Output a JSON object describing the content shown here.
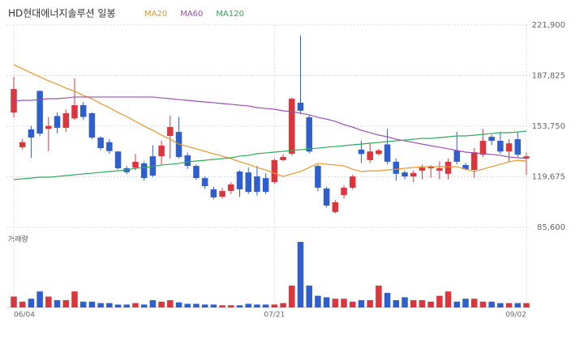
{
  "chart_data": {
    "type": "candlestick",
    "title": "HD현대에너지솔루션 일봉",
    "volume_label": "거래량",
    "up_color": "#d9363e",
    "down_color": "#2f5fcc",
    "grid": true,
    "categories": [
      "06/04",
      null,
      null,
      null,
      null,
      null,
      null,
      null,
      null,
      null,
      null,
      null,
      null,
      null,
      null,
      null,
      null,
      null,
      null,
      null,
      null,
      null,
      null,
      null,
      null,
      null,
      null,
      null,
      null,
      null,
      "07/21",
      null,
      null,
      null,
      null,
      null,
      null,
      null,
      null,
      null,
      null,
      null,
      null,
      null,
      null,
      null,
      null,
      null,
      null,
      null,
      null,
      null,
      null,
      null,
      null,
      null,
      null,
      null,
      null,
      "09/02"
    ],
    "open": [
      163000,
      139600,
      151600,
      177500,
      152000,
      160600,
      152700,
      159000,
      168000,
      162500,
      146100,
      143000,
      136700,
      125400,
      125900,
      128700,
      133500,
      133500,
      147200,
      149900,
      134100,
      127000,
      118800,
      111200,
      106300,
      110100,
      123200,
      122600,
      119900,
      118800,
      116100,
      130900,
      135200,
      169600,
      159800,
      127000,
      111800,
      95900,
      107400,
      112300,
      138000,
      130900,
      135000,
      141500,
      129800,
      122600,
      119900,
      123800,
      125400,
      123800,
      121700,
      137300,
      127600,
      124300,
      134600,
      146600,
      143900,
      136700,
      145000,
      132000
    ],
    "high": [
      187000,
      145000,
      154000,
      178000,
      160000,
      163000,
      165000,
      186000,
      170000,
      163000,
      147000,
      145000,
      137000,
      127000,
      135000,
      130000,
      141000,
      144000,
      161000,
      160000,
      136000,
      128000,
      120000,
      113000,
      112000,
      116000,
      124000,
      126000,
      127000,
      122000,
      132000,
      135000,
      173000,
      215000,
      161000,
      128000,
      113000,
      104000,
      114000,
      121000,
      144000,
      142000,
      138500,
      152000,
      132000,
      124000,
      124000,
      128000,
      127500,
      130000,
      132000,
      150000,
      129000,
      139000,
      152000,
      148000,
      150000,
      145000,
      150000,
      136000
    ],
    "low": [
      159700,
      138000,
      132500,
      147000,
      137000,
      149000,
      150000,
      158000,
      158000,
      145000,
      137500,
      135000,
      124500,
      121500,
      124000,
      117000,
      119500,
      128000,
      132000,
      132000,
      125000,
      117500,
      111500,
      104500,
      105000,
      108000,
      106000,
      108000,
      107000,
      108000,
      115000,
      130000,
      134000,
      162000,
      135500,
      110000,
      99000,
      95000,
      105000,
      111000,
      129000,
      129000,
      134000,
      128000,
      117000,
      118000,
      116000,
      118000,
      119000,
      118000,
      118000,
      128000,
      124000,
      119000,
      133000,
      141000,
      135000,
      130000,
      133000,
      121000
    ],
    "close": [
      178800,
      143000,
      146100,
      148800,
      154000,
      152700,
      162500,
      167900,
      160000,
      146100,
      139000,
      137000,
      125400,
      122800,
      129800,
      118800,
      120500,
      140700,
      153200,
      133000,
      127000,
      118800,
      113400,
      105800,
      110100,
      114500,
      111200,
      109500,
      109500,
      109500,
      130900,
      133000,
      172300,
      164200,
      136700,
      112300,
      100300,
      102500,
      112300,
      119900,
      135000,
      136700,
      137500,
      129800,
      121700,
      119900,
      122200,
      125900,
      126500,
      125400,
      129800,
      129800,
      124800,
      136200,
      143900,
      143900,
      136700,
      142200,
      134600,
      133500
    ],
    "volume": [
      15,
      8,
      12,
      22,
      15,
      10,
      10,
      22,
      8,
      8,
      6,
      6,
      4,
      4,
      6,
      4,
      10,
      8,
      10,
      7,
      5,
      5,
      4,
      4,
      3,
      3,
      3,
      5,
      4,
      4,
      4,
      6,
      30,
      90,
      30,
      16,
      14,
      12,
      12,
      8,
      10,
      10,
      30,
      20,
      10,
      14,
      10,
      10,
      8,
      16,
      22,
      8,
      12,
      12,
      8,
      8,
      6,
      6,
      6,
      6
    ],
    "vlim": [
      0,
      100
    ],
    "series": [
      {
        "name": "MA20",
        "color": "#e8962a",
        "values": [
          195200,
          192500,
          189700,
          187000,
          184300,
          182100,
          179400,
          177200,
          174500,
          172300,
          169000,
          166300,
          163000,
          160300,
          157000,
          153800,
          151000,
          147800,
          145000,
          141700,
          140100,
          138500,
          136800,
          135200,
          133600,
          131900,
          129800,
          128100,
          125900,
          124300,
          122100,
          119900,
          121600,
          123200,
          125900,
          128700,
          128100,
          127600,
          127000,
          124800,
          123200,
          123700,
          123700,
          124300,
          124800,
          125400,
          125900,
          126500,
          126500,
          126500,
          126500,
          126500,
          124800,
          123200,
          124800,
          126500,
          128100,
          129800,
          130800,
          130300
        ]
      },
      {
        "name": "MA60",
        "color": "#9b4fb0",
        "values": [
          170600,
          171200,
          171200,
          171700,
          172300,
          172300,
          172800,
          173400,
          173400,
          173400,
          173400,
          173400,
          173400,
          173400,
          173400,
          173400,
          173400,
          172800,
          172300,
          171700,
          171200,
          170600,
          170100,
          169600,
          169000,
          168500,
          167900,
          167400,
          166300,
          165700,
          165200,
          164100,
          163600,
          162500,
          161400,
          159700,
          158600,
          157000,
          154800,
          153200,
          151000,
          149400,
          147800,
          146600,
          145000,
          143900,
          142800,
          141700,
          140600,
          139600,
          138500,
          137400,
          136300,
          135800,
          135200,
          134700,
          134100,
          133000,
          132500,
          132000
        ]
      },
      {
        "name": "MA120",
        "color": "#2eaa5a",
        "values": [
          117800,
          118300,
          118800,
          119400,
          119400,
          119900,
          120500,
          121000,
          121600,
          122100,
          122700,
          123200,
          123700,
          124300,
          125400,
          125900,
          126500,
          127600,
          128100,
          128700,
          129800,
          130300,
          130800,
          131400,
          131900,
          132500,
          133600,
          134100,
          135200,
          135800,
          136300,
          136800,
          137400,
          137900,
          138500,
          139000,
          139600,
          140100,
          140600,
          141200,
          141700,
          142300,
          142800,
          143400,
          143900,
          144400,
          145000,
          145500,
          145500,
          146100,
          146600,
          147200,
          147200,
          147700,
          148300,
          148800,
          149400,
          149400,
          149900,
          150400
        ]
      }
    ],
    "ylim": [
      85600,
      221900
    ],
    "yticks": [
      {
        "value": 85600,
        "label": "85,600"
      },
      {
        "value": 119675,
        "label": "119,675"
      },
      {
        "value": 153750,
        "label": "153,750"
      },
      {
        "value": 187825,
        "label": "187,825"
      },
      {
        "value": 221900,
        "label": "221,900"
      }
    ]
  }
}
